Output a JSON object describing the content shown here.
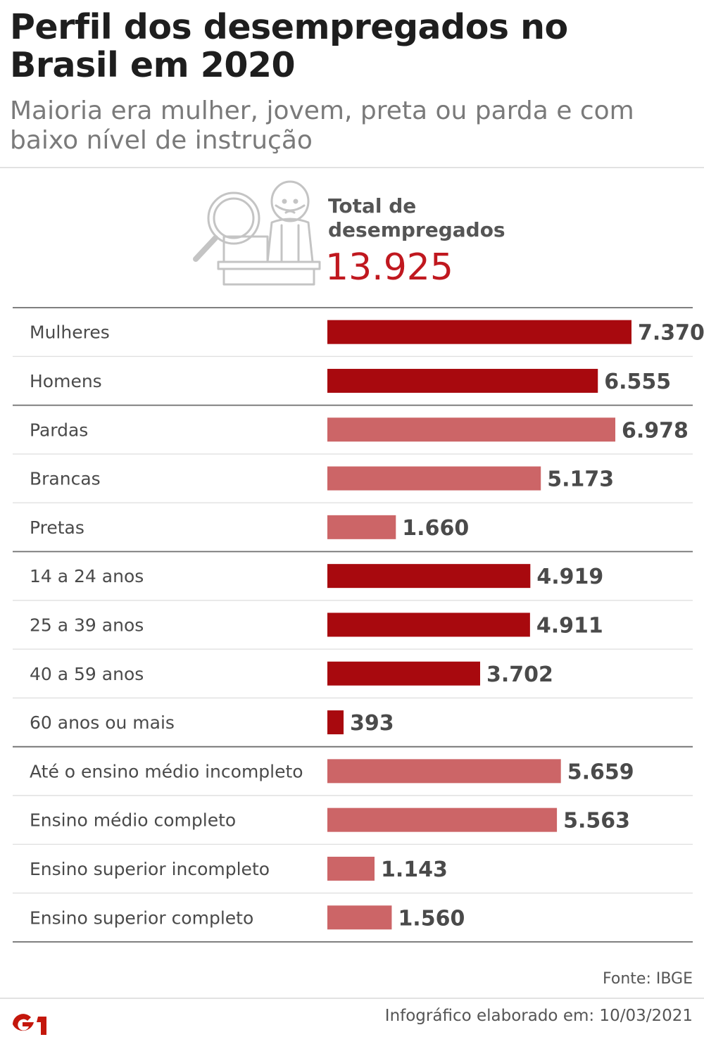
{
  "header": {
    "title": "Perfil dos desempregados no Brasil em 2020",
    "subtitle": "Maioria era mulher, jovem, preta ou parda e com baixo nível de instrução"
  },
  "total": {
    "label_line1": "Total de",
    "label_line2": "desempregados",
    "value": "13.925",
    "icon": "unemployed-person-magnifier-icon"
  },
  "chart_data": {
    "type": "bar",
    "orientation": "horizontal",
    "categories": [
      "Mulheres",
      "Homens",
      "Pardas",
      "Brancas",
      "Pretas",
      "14 a 24 anos",
      "25 a 39 anos",
      "40 a 59 anos",
      "60 anos ou mais",
      "Até o ensino médio incompleto",
      "Ensino médio completo",
      "Ensino superior incompleto",
      "Ensino superior completo"
    ],
    "values": [
      7370,
      6555,
      6978,
      5173,
      1660,
      4919,
      4911,
      3702,
      393,
      5659,
      5563,
      1143,
      1560
    ],
    "value_labels": [
      "7.370",
      "6.555",
      "6.978",
      "5.173",
      "1.660",
      "4.919",
      "4.911",
      "3.702",
      "393",
      "5.659",
      "5.563",
      "1.143",
      "1.560"
    ],
    "groups": [
      {
        "start": 0,
        "count": 2,
        "color": "#a8090e"
      },
      {
        "start": 2,
        "count": 3,
        "color": "#cc6567"
      },
      {
        "start": 5,
        "count": 4,
        "color": "#a8090e"
      },
      {
        "start": 9,
        "count": 4,
        "color": "#cc6567"
      }
    ],
    "xlim": [
      0,
      7370
    ],
    "grid": false,
    "legend": "none"
  },
  "footer": {
    "source": "Fonte: IBGE",
    "made": "Infográfico elaborado em: 10/03/2021",
    "logo_text": "G1"
  }
}
